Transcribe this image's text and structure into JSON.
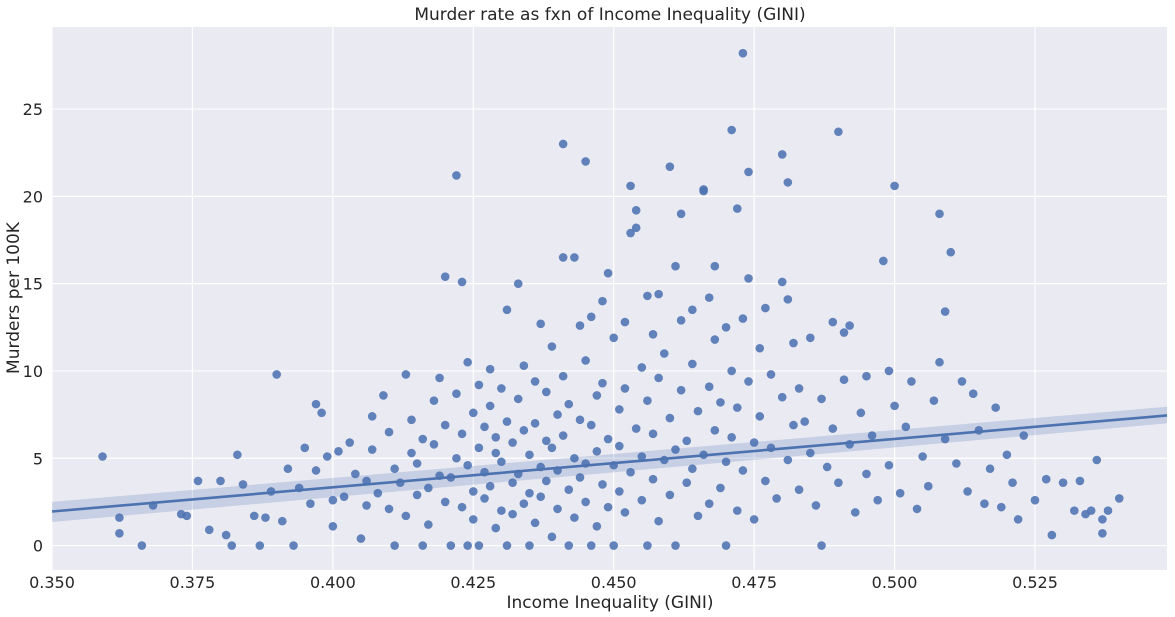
{
  "chart_data": {
    "type": "scatter",
    "title": "Murder rate as fxn of Income Inequality (GINI)",
    "xlabel": "Income Inequality (GINI)",
    "ylabel": "Murders per 100K",
    "xlim": [
      0.35,
      0.5485
    ],
    "ylim": [
      -1.4,
      29.7
    ],
    "xticks": [
      "0.350",
      "0.375",
      "0.400",
      "0.425",
      "0.450",
      "0.475",
      "0.500",
      "0.525"
    ],
    "yticks": [
      "0",
      "5",
      "10",
      "15",
      "20",
      "25"
    ],
    "grid": true,
    "background": "#eaeaf2",
    "marker_color": "#4c72b0",
    "regression": {
      "x": [
        0.35,
        0.5485
      ],
      "y": [
        1.95,
        7.45
      ],
      "ci_lower": [
        1.35,
        7.0
      ],
      "ci_upper": [
        2.5,
        7.95
      ]
    },
    "series": [
      {
        "points": [
          [
            0.359,
            5.1
          ],
          [
            0.362,
            0.7
          ],
          [
            0.362,
            1.6
          ],
          [
            0.366,
            0.0
          ],
          [
            0.368,
            2.3
          ],
          [
            0.373,
            1.8
          ],
          [
            0.374,
            1.7
          ],
          [
            0.376,
            3.7
          ],
          [
            0.378,
            0.9
          ],
          [
            0.38,
            3.7
          ],
          [
            0.381,
            0.6
          ],
          [
            0.382,
            0.0
          ],
          [
            0.383,
            5.2
          ],
          [
            0.384,
            3.5
          ],
          [
            0.386,
            1.7
          ],
          [
            0.387,
            0.0
          ],
          [
            0.388,
            1.6
          ],
          [
            0.389,
            3.1
          ],
          [
            0.39,
            9.8
          ],
          [
            0.391,
            1.4
          ],
          [
            0.392,
            4.4
          ],
          [
            0.393,
            0.0
          ],
          [
            0.394,
            3.3
          ],
          [
            0.395,
            5.6
          ],
          [
            0.396,
            2.4
          ],
          [
            0.397,
            8.1
          ],
          [
            0.397,
            4.3
          ],
          [
            0.398,
            7.6
          ],
          [
            0.399,
            5.1
          ],
          [
            0.4,
            2.6
          ],
          [
            0.4,
            1.1
          ],
          [
            0.401,
            5.4
          ],
          [
            0.402,
            2.8
          ],
          [
            0.403,
            5.9
          ],
          [
            0.404,
            4.1
          ],
          [
            0.405,
            0.4
          ],
          [
            0.406,
            2.3
          ],
          [
            0.406,
            3.7
          ],
          [
            0.407,
            5.5
          ],
          [
            0.407,
            7.4
          ],
          [
            0.408,
            3.0
          ],
          [
            0.409,
            8.6
          ],
          [
            0.41,
            6.5
          ],
          [
            0.41,
            2.1
          ],
          [
            0.411,
            4.4
          ],
          [
            0.411,
            0.0
          ],
          [
            0.412,
            3.6
          ],
          [
            0.413,
            9.8
          ],
          [
            0.413,
            1.7
          ],
          [
            0.414,
            5.3
          ],
          [
            0.414,
            7.2
          ],
          [
            0.415,
            2.9
          ],
          [
            0.415,
            4.7
          ],
          [
            0.416,
            0.0
          ],
          [
            0.416,
            6.1
          ],
          [
            0.417,
            3.3
          ],
          [
            0.417,
            1.2
          ],
          [
            0.418,
            5.8
          ],
          [
            0.418,
            8.3
          ],
          [
            0.419,
            4.0
          ],
          [
            0.419,
            9.6
          ],
          [
            0.42,
            2.5
          ],
          [
            0.42,
            6.9
          ],
          [
            0.42,
            15.4
          ],
          [
            0.421,
            0.0
          ],
          [
            0.421,
            3.9
          ],
          [
            0.422,
            21.2
          ],
          [
            0.422,
            5.0
          ],
          [
            0.422,
            8.7
          ],
          [
            0.423,
            15.1
          ],
          [
            0.423,
            2.2
          ],
          [
            0.423,
            6.4
          ],
          [
            0.424,
            10.5
          ],
          [
            0.424,
            4.6
          ],
          [
            0.424,
            0.0
          ],
          [
            0.425,
            3.1
          ],
          [
            0.425,
            7.6
          ],
          [
            0.425,
            1.5
          ],
          [
            0.426,
            9.2
          ],
          [
            0.426,
            5.6
          ],
          [
            0.426,
            0.0
          ],
          [
            0.427,
            2.7
          ],
          [
            0.427,
            6.8
          ],
          [
            0.427,
            4.2
          ],
          [
            0.428,
            10.1
          ],
          [
            0.428,
            3.4
          ],
          [
            0.428,
            8.0
          ],
          [
            0.429,
            1.0
          ],
          [
            0.429,
            5.3
          ],
          [
            0.429,
            6.2
          ],
          [
            0.43,
            2.0
          ],
          [
            0.43,
            9.0
          ],
          [
            0.43,
            4.8
          ],
          [
            0.431,
            13.5
          ],
          [
            0.431,
            7.1
          ],
          [
            0.431,
            0.0
          ],
          [
            0.432,
            3.6
          ],
          [
            0.432,
            5.9
          ],
          [
            0.432,
            1.8
          ],
          [
            0.433,
            15.0
          ],
          [
            0.433,
            8.4
          ],
          [
            0.433,
            4.1
          ],
          [
            0.434,
            2.4
          ],
          [
            0.434,
            6.6
          ],
          [
            0.434,
            10.3
          ],
          [
            0.435,
            0.0
          ],
          [
            0.435,
            5.2
          ],
          [
            0.435,
            3.0
          ],
          [
            0.436,
            9.4
          ],
          [
            0.436,
            7.0
          ],
          [
            0.436,
            1.3
          ],
          [
            0.437,
            4.5
          ],
          [
            0.437,
            12.7
          ],
          [
            0.437,
            2.8
          ],
          [
            0.438,
            6.0
          ],
          [
            0.438,
            8.8
          ],
          [
            0.438,
            3.7
          ],
          [
            0.439,
            0.5
          ],
          [
            0.439,
            5.6
          ],
          [
            0.439,
            11.4
          ],
          [
            0.44,
            7.5
          ],
          [
            0.44,
            2.1
          ],
          [
            0.44,
            4.3
          ],
          [
            0.441,
            23.0
          ],
          [
            0.441,
            16.5
          ],
          [
            0.441,
            9.7
          ],
          [
            0.441,
            6.3
          ],
          [
            0.442,
            3.2
          ],
          [
            0.442,
            0.0
          ],
          [
            0.442,
            8.1
          ],
          [
            0.443,
            16.5
          ],
          [
            0.443,
            5.0
          ],
          [
            0.443,
            1.6
          ],
          [
            0.444,
            12.6
          ],
          [
            0.444,
            7.2
          ],
          [
            0.444,
            3.9
          ],
          [
            0.445,
            22.0
          ],
          [
            0.445,
            10.6
          ],
          [
            0.445,
            4.7
          ],
          [
            0.445,
            2.5
          ],
          [
            0.446,
            6.9
          ],
          [
            0.446,
            0.0
          ],
          [
            0.446,
            13.1
          ],
          [
            0.447,
            5.4
          ],
          [
            0.447,
            8.6
          ],
          [
            0.447,
            1.1
          ],
          [
            0.448,
            14.0
          ],
          [
            0.448,
            3.5
          ],
          [
            0.448,
            9.3
          ],
          [
            0.449,
            15.6
          ],
          [
            0.449,
            6.1
          ],
          [
            0.449,
            2.2
          ],
          [
            0.45,
            4.6
          ],
          [
            0.45,
            11.9
          ],
          [
            0.45,
            0.0
          ],
          [
            0.451,
            7.8
          ],
          [
            0.451,
            3.1
          ],
          [
            0.451,
            5.7
          ],
          [
            0.452,
            12.8
          ],
          [
            0.452,
            1.9
          ],
          [
            0.452,
            9.0
          ],
          [
            0.453,
            17.9
          ],
          [
            0.453,
            20.6
          ],
          [
            0.453,
            4.2
          ],
          [
            0.454,
            19.2
          ],
          [
            0.454,
            18.2
          ],
          [
            0.454,
            6.7
          ],
          [
            0.455,
            2.6
          ],
          [
            0.455,
            10.2
          ],
          [
            0.455,
            5.1
          ],
          [
            0.456,
            14.3
          ],
          [
            0.456,
            8.3
          ],
          [
            0.456,
            0.0
          ],
          [
            0.457,
            3.8
          ],
          [
            0.457,
            12.1
          ],
          [
            0.457,
            6.4
          ],
          [
            0.458,
            14.4
          ],
          [
            0.458,
            1.4
          ],
          [
            0.458,
            9.6
          ],
          [
            0.459,
            4.9
          ],
          [
            0.459,
            11.0
          ],
          [
            0.46,
            21.7
          ],
          [
            0.46,
            7.3
          ],
          [
            0.46,
            2.9
          ],
          [
            0.461,
            16.0
          ],
          [
            0.461,
            5.5
          ],
          [
            0.461,
            0.0
          ],
          [
            0.462,
            19.0
          ],
          [
            0.462,
            12.9
          ],
          [
            0.462,
            8.9
          ],
          [
            0.463,
            3.6
          ],
          [
            0.463,
            6.0
          ],
          [
            0.464,
            13.5
          ],
          [
            0.464,
            10.4
          ],
          [
            0.464,
            4.4
          ],
          [
            0.465,
            1.7
          ],
          [
            0.465,
            7.7
          ],
          [
            0.466,
            20.4
          ],
          [
            0.466,
            20.3
          ],
          [
            0.466,
            5.2
          ],
          [
            0.467,
            14.2
          ],
          [
            0.467,
            9.1
          ],
          [
            0.467,
            2.4
          ],
          [
            0.468,
            16.0
          ],
          [
            0.468,
            11.8
          ],
          [
            0.468,
            6.6
          ],
          [
            0.469,
            3.3
          ],
          [
            0.469,
            8.2
          ],
          [
            0.47,
            12.5
          ],
          [
            0.47,
            4.8
          ],
          [
            0.47,
            0.0
          ],
          [
            0.471,
            23.8
          ],
          [
            0.471,
            10.0
          ],
          [
            0.471,
            6.2
          ],
          [
            0.472,
            19.3
          ],
          [
            0.472,
            2.0
          ],
          [
            0.472,
            7.9
          ],
          [
            0.473,
            28.2
          ],
          [
            0.473,
            13.0
          ],
          [
            0.473,
            4.3
          ],
          [
            0.474,
            15.3
          ],
          [
            0.474,
            21.4
          ],
          [
            0.474,
            9.4
          ],
          [
            0.475,
            5.9
          ],
          [
            0.475,
            1.5
          ],
          [
            0.476,
            11.3
          ],
          [
            0.476,
            7.4
          ],
          [
            0.477,
            13.6
          ],
          [
            0.477,
            3.7
          ],
          [
            0.478,
            9.8
          ],
          [
            0.478,
            5.6
          ],
          [
            0.479,
            2.7
          ],
          [
            0.48,
            22.4
          ],
          [
            0.48,
            15.1
          ],
          [
            0.48,
            8.5
          ],
          [
            0.481,
            20.8
          ],
          [
            0.481,
            14.1
          ],
          [
            0.481,
            4.9
          ],
          [
            0.482,
            6.9
          ],
          [
            0.482,
            11.6
          ],
          [
            0.483,
            3.2
          ],
          [
            0.483,
            9.0
          ],
          [
            0.484,
            7.1
          ],
          [
            0.485,
            5.3
          ],
          [
            0.485,
            11.9
          ],
          [
            0.486,
            2.3
          ],
          [
            0.487,
            8.4
          ],
          [
            0.487,
            0.0
          ],
          [
            0.488,
            4.5
          ],
          [
            0.489,
            12.8
          ],
          [
            0.489,
            6.7
          ],
          [
            0.49,
            23.7
          ],
          [
            0.49,
            3.6
          ],
          [
            0.491,
            12.2
          ],
          [
            0.491,
            9.5
          ],
          [
            0.492,
            5.8
          ],
          [
            0.492,
            12.6
          ],
          [
            0.493,
            1.9
          ],
          [
            0.494,
            7.6
          ],
          [
            0.495,
            4.1
          ],
          [
            0.495,
            9.7
          ],
          [
            0.496,
            6.3
          ],
          [
            0.497,
            2.6
          ],
          [
            0.498,
            16.3
          ],
          [
            0.499,
            10.0
          ],
          [
            0.499,
            4.6
          ],
          [
            0.5,
            8.0
          ],
          [
            0.5,
            20.6
          ],
          [
            0.501,
            3.0
          ],
          [
            0.502,
            6.8
          ],
          [
            0.503,
            9.4
          ],
          [
            0.504,
            2.1
          ],
          [
            0.505,
            5.1
          ],
          [
            0.506,
            3.4
          ],
          [
            0.507,
            8.3
          ],
          [
            0.508,
            19.0
          ],
          [
            0.508,
            10.5
          ],
          [
            0.509,
            6.1
          ],
          [
            0.509,
            13.4
          ],
          [
            0.51,
            16.8
          ],
          [
            0.511,
            4.7
          ],
          [
            0.512,
            9.4
          ],
          [
            0.513,
            3.1
          ],
          [
            0.514,
            8.7
          ],
          [
            0.515,
            6.6
          ],
          [
            0.516,
            2.4
          ],
          [
            0.517,
            4.4
          ],
          [
            0.518,
            7.9
          ],
          [
            0.519,
            2.2
          ],
          [
            0.52,
            5.2
          ],
          [
            0.521,
            3.6
          ],
          [
            0.522,
            1.5
          ],
          [
            0.523,
            6.3
          ],
          [
            0.525,
            2.6
          ],
          [
            0.527,
            3.8
          ],
          [
            0.528,
            0.6
          ],
          [
            0.53,
            3.6
          ],
          [
            0.532,
            2.0
          ],
          [
            0.533,
            3.7
          ],
          [
            0.534,
            1.8
          ],
          [
            0.535,
            2.0
          ],
          [
            0.536,
            4.9
          ],
          [
            0.537,
            1.5
          ],
          [
            0.537,
            0.7
          ],
          [
            0.538,
            2.0
          ],
          [
            0.54,
            2.7
          ]
        ]
      }
    ]
  }
}
